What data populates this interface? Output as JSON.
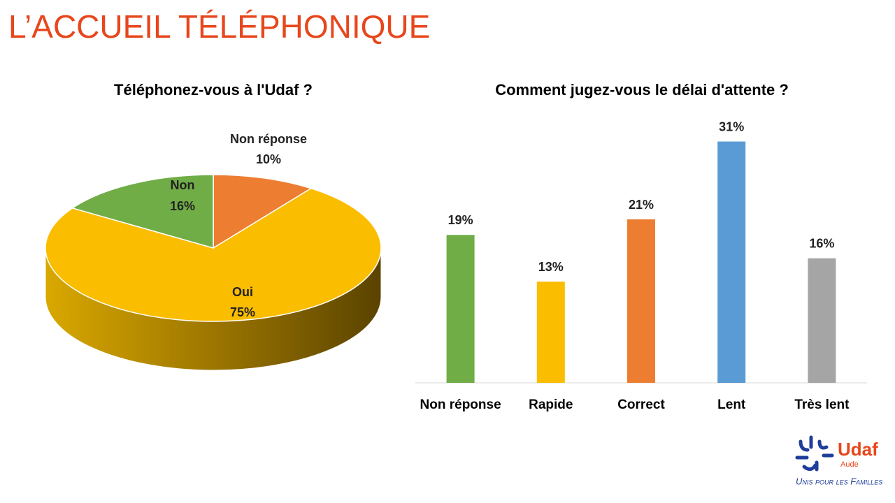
{
  "title": "L’ACCUEIL TÉLÉPHONIQUE",
  "chart_data": [
    {
      "type": "pie",
      "title": "Téléphonez-vous à l'Udaf ?",
      "categories": [
        "Non réponse",
        "Oui",
        "Non"
      ],
      "values": [
        10,
        75,
        16
      ],
      "value_labels": [
        "10%",
        "75%",
        "16%"
      ],
      "colors": [
        "#ed7d31",
        "#fabd00",
        "#70ad47"
      ]
    },
    {
      "type": "bar",
      "title": "Comment jugez-vous le délai d'attente ?",
      "categories": [
        "Non réponse",
        "Rapide",
        "Correct",
        "Lent",
        "Très lent"
      ],
      "values": [
        19,
        13,
        21,
        31,
        16
      ],
      "value_labels": [
        "19%",
        "13%",
        "21%",
        "31%",
        "16%"
      ],
      "colors": [
        "#70ad47",
        "#fabd00",
        "#ed7d31",
        "#5b9bd5",
        "#a5a5a5"
      ],
      "ylim": [
        0,
        35
      ]
    }
  ],
  "logo": {
    "name": "Udaf",
    "region": "Aude",
    "tagline": "Unis pour les Familles"
  }
}
